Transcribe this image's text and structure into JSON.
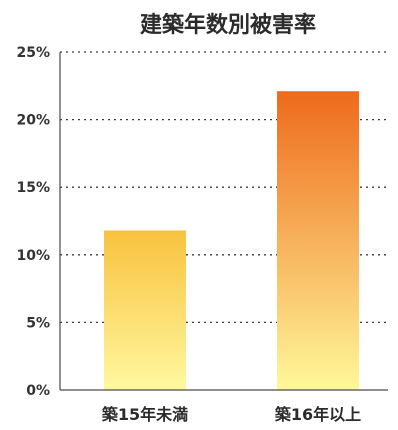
{
  "chart_data": {
    "type": "bar",
    "title": "建築年数別被害率",
    "categories": [
      "築15年未満",
      "築16年以上"
    ],
    "values": [
      11.8,
      22.1
    ],
    "ylim": [
      0,
      25
    ],
    "yticks": [
      0,
      5,
      10,
      15,
      20,
      25
    ],
    "ytick_labels": [
      "0%",
      "5%",
      "10%",
      "15%",
      "20%",
      "25%"
    ],
    "xlabel": "",
    "ylabel": "",
    "grid": true,
    "grid_style": "dotted",
    "bar_gradient": {
      "bars": [
        {
          "top": "#f8c23e",
          "bottom": "#fff8a0"
        },
        {
          "top": "#ee6a1c",
          "bottom": "#fff89a"
        }
      ]
    },
    "colors": {
      "grid": "#3a3a3a",
      "axis": "#4a4a4a",
      "text": "#2b2b2b"
    }
  }
}
